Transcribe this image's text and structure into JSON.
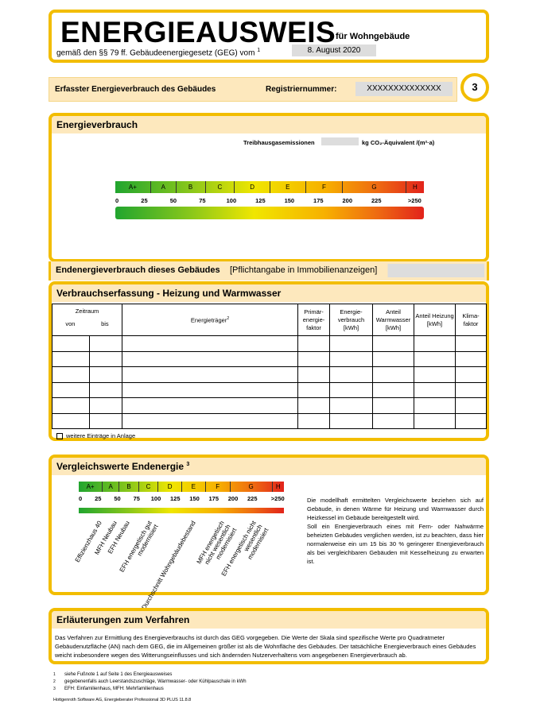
{
  "header": {
    "title": "ENERGIEAUSWEIS",
    "subtitle": "für Wohngebäude",
    "law": "gemäß den §§ 79 ff. Gebäudeenergiegesetz (GEG) vom",
    "law_sup": "1",
    "date": "8. August 2020"
  },
  "info": {
    "label": "Erfasster Energieverbrauch des Gebäudes",
    "reg_label": "Registriernummer:",
    "reg": "XXXXXXXXXXXXXX",
    "page": "3"
  },
  "scale": {
    "classes": [
      "A+",
      "A",
      "B",
      "C",
      "D",
      "E",
      "F",
      "G",
      "H"
    ],
    "ticks": [
      0,
      25,
      50,
      75,
      100,
      125,
      150,
      175,
      200,
      225,
      ">250"
    ]
  },
  "energy": {
    "title": "Energieverbrauch",
    "ghg_label": "Treibhausgasemissionen",
    "ghg_unit": "kg CO₂-Äquivalent /(m²·a)"
  },
  "end_energy": {
    "label": "Endenergieverbrauch dieses Gebäudes",
    "note": "[Pflichtangabe in Immobilienanzeigen]"
  },
  "consumption": {
    "title": "Verbrauchserfassung - Heizung und Warmwasser",
    "period": "Zeitraum",
    "from": "von",
    "to": "bis",
    "carrier": "Energieträger",
    "carrier_sup": "2",
    "columns": [
      "Primär-energie-faktor",
      "Energie-verbrauch [kWh]",
      "Anteil Warmwasser [kWh]",
      "Anteil Heizung [kWh]",
      "Klima-faktor"
    ],
    "more": "weitere Einträge in Anlage"
  },
  "comparison": {
    "title": "Vergleichswerte Endenergie",
    "title_sup": "3",
    "buildings": [
      "Effizienzhaus 40",
      "MFH Neubau",
      "EFH Neubau",
      "EFH energetisch gut modernisiert",
      "Durchschnitt Wohngebäudebestand",
      "MFH energetisch nicht wesentlich modernisiert",
      "EFH energetisch nicht wesentlich modernisiert"
    ],
    "text1": "Die modellhaft ermittelten Vergleichswerte beziehen sich auf Gebäude, in denen Wärme für Heizung und Warmwasser durch Heizkessel im Gebäude bereitgestellt wird.",
    "text2": "Soll ein Energieverbrauch eines mit Fern- oder Nahwärme beheizten Gebäudes verglichen werden, ist zu beachten, dass hier normalerweise ein um 15 bis 30 % geringerer Energieverbrauch als bei vergleichbaren Gebäuden mit Kesselheizung zu erwarten ist."
  },
  "explanation": {
    "title": "Erläuterungen zum Verfahren",
    "text": "Das Verfahren zur Ermittlung des Energieverbrauchs ist durch das GEG vorgegeben. Die Werte der Skala sind spezifische Werte pro Quadratmeter Gebäudenutzfläche (AN) nach dem GEG, die im Allgemeinen größer ist als die Wohnfläche des Gebäudes. Der tatsächliche Energieverbrauch eines Gebäudes weicht insbesondere wegen des Witterungseinflusses und sich ändernden Nutzerverhaltens vom angegebenen Energieverbrauch ab."
  },
  "footnotes": [
    {
      "n": "1",
      "text": "siehe Fußnote 1 auf Seite 1 des Energieausweises"
    },
    {
      "n": "2",
      "text": "gegebenenfalls auch Leerstandszuschläge, Warmwasser- oder Kühlpauschale in kWh"
    },
    {
      "n": "3",
      "text": "EFH: Einfamilienhaus, MFH: Mehrfamilienhaus"
    }
  ],
  "footer": "Hottgenroth Software AG, Energieberater Professional 3D PLUS 11.8.8"
}
